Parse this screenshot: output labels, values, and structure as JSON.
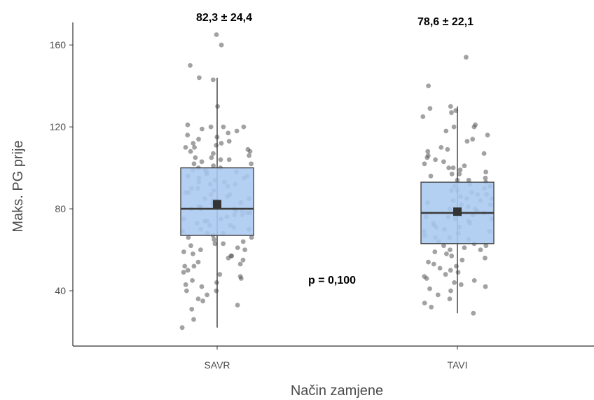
{
  "chart_data": {
    "type": "box",
    "xlabel": "Način zamjene",
    "ylabel": "Maks. PG prije",
    "ylim": [
      13,
      171
    ],
    "yticks": [
      40,
      80,
      120,
      160
    ],
    "grid": false,
    "colors": {
      "box_fill": "#a9c8f0",
      "box_stroke": "#3c3c3c",
      "points": "#555555",
      "mean_marker": "#333333"
    },
    "categories": [
      "SAVR",
      "TAVI"
    ],
    "groups": [
      {
        "category": "SAVR",
        "summary_label": "82,3 ± 24,4",
        "min": 22,
        "q1": 67,
        "median": 80,
        "q3": 100,
        "max": 144,
        "mean": 82.3,
        "points": [
          165,
          160,
          150,
          144,
          143,
          130,
          121,
          120,
          120,
          120,
          119,
          118,
          117,
          116,
          115,
          114,
          113,
          112,
          112,
          111,
          110,
          110,
          109,
          108,
          108,
          107,
          106,
          105,
          105,
          104,
          104,
          103,
          102,
          102,
          101,
          100,
          100,
          99,
          99,
          98,
          98,
          97,
          96,
          96,
          95,
          95,
          94,
          93,
          93,
          92,
          92,
          91,
          90,
          90,
          89,
          88,
          88,
          87,
          87,
          86,
          85,
          85,
          84,
          84,
          83,
          83,
          82,
          82,
          81,
          81,
          80,
          80,
          80,
          79,
          79,
          78,
          78,
          77,
          77,
          76,
          75,
          75,
          74,
          74,
          73,
          72,
          72,
          71,
          70,
          70,
          69,
          68,
          68,
          67,
          66,
          66,
          65,
          64,
          63,
          63,
          62,
          61,
          60,
          60,
          59,
          58,
          57,
          57,
          56,
          55,
          54,
          53,
          52,
          52,
          50,
          49,
          48,
          47,
          46,
          45,
          44,
          43,
          42,
          40,
          40,
          38,
          36,
          35,
          33,
          31,
          26,
          22
        ]
      },
      {
        "category": "TAVI",
        "summary_label": "78,6 ± 22,1",
        "min": 29,
        "q1": 63,
        "median": 78,
        "q3": 93,
        "max": 130,
        "mean": 78.6,
        "points": [
          154,
          140,
          130,
          129,
          128,
          127,
          125,
          121,
          120,
          120,
          118,
          116,
          114,
          113,
          110,
          109,
          108,
          107,
          106,
          105,
          104,
          103,
          102,
          101,
          100,
          100,
          99,
          98,
          97,
          97,
          96,
          95,
          94,
          94,
          93,
          92,
          91,
          91,
          90,
          89,
          89,
          88,
          87,
          87,
          86,
          85,
          85,
          84,
          84,
          83,
          82,
          82,
          81,
          80,
          80,
          79,
          79,
          78,
          78,
          77,
          76,
          76,
          75,
          75,
          74,
          73,
          73,
          72,
          71,
          71,
          70,
          69,
          69,
          68,
          67,
          66,
          66,
          65,
          64,
          63,
          62,
          62,
          61,
          60,
          60,
          59,
          58,
          57,
          56,
          55,
          54,
          53,
          52,
          51,
          50,
          49,
          48,
          47,
          46,
          45,
          44,
          43,
          42,
          41,
          40,
          38,
          36,
          34,
          32,
          29
        ]
      }
    ],
    "annotations": [
      {
        "text": "p = 0,100"
      }
    ]
  }
}
